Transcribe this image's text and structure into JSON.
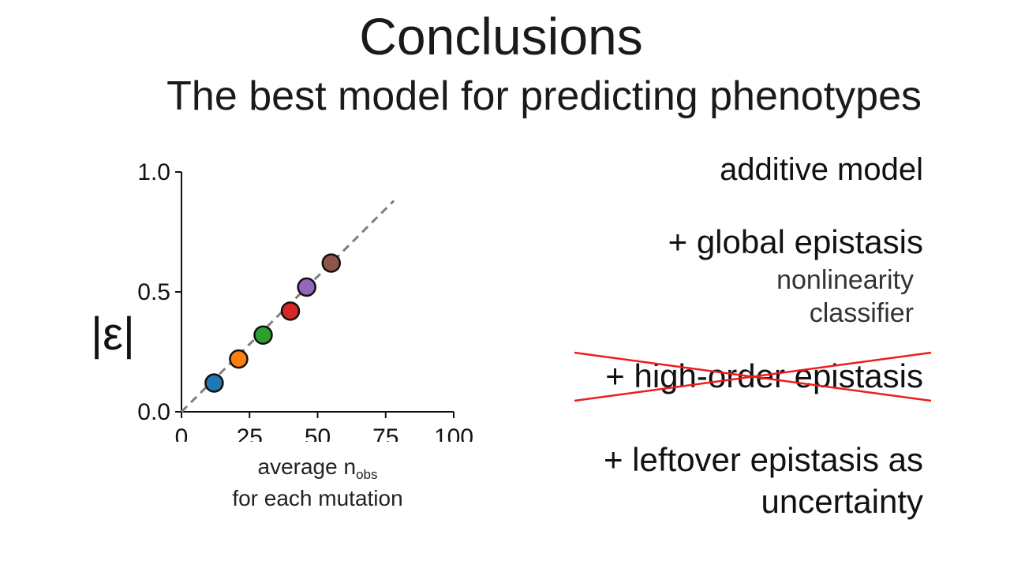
{
  "slide": {
    "title": "Conclusions",
    "subtitle_pre": "The",
    "subtitle_bold": "best",
    "subtitle_post": "model for predicting phenotypes"
  },
  "right_panel": {
    "item1": "additive model",
    "item2_plus": "+",
    "item2_text": "global epistasis",
    "item2_sub1": "nonlinearity",
    "item2_sub2": "classifier",
    "item3_plus": "+",
    "item3_text": "high-order epistasis",
    "item3_crossed_out": true,
    "item4_line1": "+ leftover epistasis as",
    "item4_line2": "uncertainty"
  },
  "chart_data": {
    "type": "scatter",
    "ylabel": "|ε|",
    "xlabel_main": "average n",
    "xlabel_sub": "obs",
    "xlabel_line2": "for each mutation",
    "xlim": [
      0,
      100
    ],
    "ylim": [
      0,
      1.0
    ],
    "xticks": [
      "0",
      "25",
      "50",
      "75",
      "100"
    ],
    "yticks": [
      "0.0",
      "0.5",
      "1.0"
    ],
    "points": [
      {
        "x": 12,
        "y": 0.12,
        "color": "#1f77b4"
      },
      {
        "x": 21,
        "y": 0.22,
        "color": "#ff7f0e"
      },
      {
        "x": 30,
        "y": 0.32,
        "color": "#2ca02c"
      },
      {
        "x": 40,
        "y": 0.42,
        "color": "#d62728"
      },
      {
        "x": 46,
        "y": 0.52,
        "color": "#9467bd"
      },
      {
        "x": 55,
        "y": 0.62,
        "color": "#8c564b"
      }
    ],
    "trendline": {
      "x": [
        0,
        78
      ],
      "y": [
        0,
        0.88
      ],
      "style": "dashed",
      "color": "#7f7f7f"
    },
    "grid": false
  },
  "colors": {
    "strike": "#ee1c1c",
    "axis": "#111111"
  }
}
